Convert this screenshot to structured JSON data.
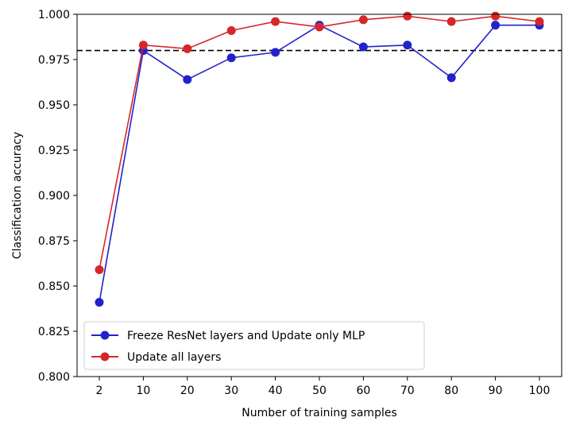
{
  "chart_data": {
    "type": "line",
    "xlabel": "Number of training samples",
    "ylabel": "Classification accuracy",
    "categories": [
      "2",
      "10",
      "20",
      "30",
      "40",
      "50",
      "60",
      "70",
      "80",
      "90",
      "100"
    ],
    "ylim": [
      0.8,
      1.0
    ],
    "yticks": [
      "0.800",
      "0.825",
      "0.850",
      "0.875",
      "0.900",
      "0.925",
      "0.950",
      "0.975",
      "1.000"
    ],
    "grid": false,
    "legend_position": "lower-left",
    "reference_line": {
      "y": 0.98,
      "style": "dashed",
      "color": "#000000"
    },
    "series": [
      {
        "name": "Freeze ResNet layers and Update only MLP",
        "color": "#2222cc",
        "values": [
          0.841,
          0.98,
          0.964,
          0.976,
          0.979,
          0.994,
          0.982,
          0.983,
          0.965,
          0.994,
          0.994
        ]
      },
      {
        "name": "Update all layers",
        "color": "#d62728",
        "values": [
          0.859,
          0.983,
          0.981,
          0.991,
          0.996,
          0.993,
          0.997,
          0.999,
          0.996,
          0.999,
          0.996
        ]
      }
    ]
  }
}
